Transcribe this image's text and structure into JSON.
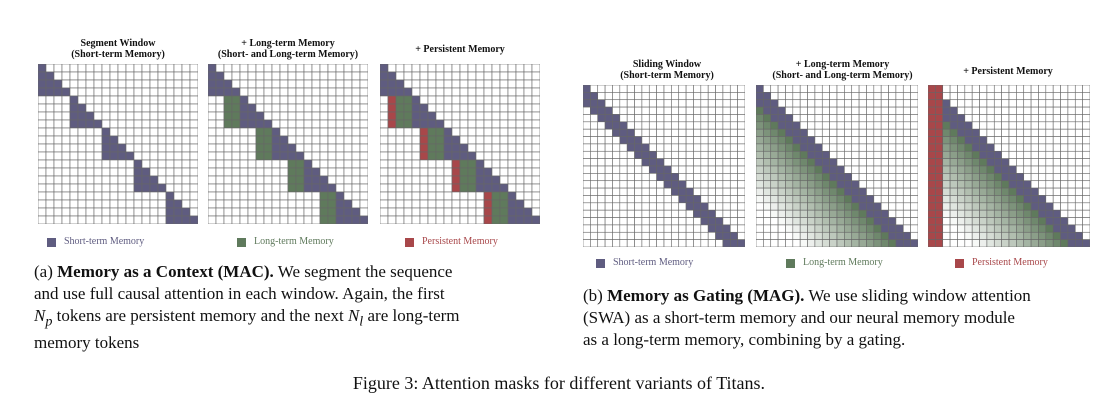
{
  "colors": {
    "short_term": "#5f5c80",
    "long_term": "#5f7a5c",
    "persistent": "#a8474a",
    "grid_line": "#666666"
  },
  "mac": {
    "panels": [
      {
        "title_line1": "Segment Window",
        "title_line2": "(Short-term Memory)"
      },
      {
        "title_line1": "+ Long-term Memory",
        "title_line2": "(Short- and Long-term Memory)"
      },
      {
        "title_line1": "+ Persistent Memory",
        "title_line2": ""
      }
    ],
    "legend": {
      "short": "Short-term Memory",
      "long": "Long-term Memory",
      "persistent": "Persistent Memory"
    },
    "caption_label": "(a)",
    "caption_bold": "Memory as a Context (MAC).",
    "caption_text1": " We segment the sequence",
    "caption_line2": "and use full causal attention in each window.  Again, the first",
    "caption_np": "N",
    "caption_np_sub": "p",
    "caption_line3_mid": " tokens are persistent memory and the next ",
    "caption_nl": "N",
    "caption_nl_sub": "l",
    "caption_line3_end": " are long-term",
    "caption_line4": "memory tokens"
  },
  "mag": {
    "panels": [
      {
        "title_line1": "Sliding Window",
        "title_line2": "(Short-term Memory)"
      },
      {
        "title_line1": "+ Long-term Memory",
        "title_line2": "(Short- and Long-term Memory)"
      },
      {
        "title_line1": "+ Persistent Memory",
        "title_line2": ""
      }
    ],
    "legend": {
      "short": "Short-term Memory",
      "long": "Long-term Memory",
      "persistent": "Persistent Memory"
    },
    "caption_label": "(b)",
    "caption_bold": "Memory as Gating (MAG).",
    "caption_text1": " We use sliding window attention",
    "caption_line2": "(SWA) as a short-term memory and our neural memory module",
    "caption_line3": "as a long-term memory, combining by a gating."
  },
  "figure_caption": "Figure 3: Attention masks for different variants of Titans."
}
